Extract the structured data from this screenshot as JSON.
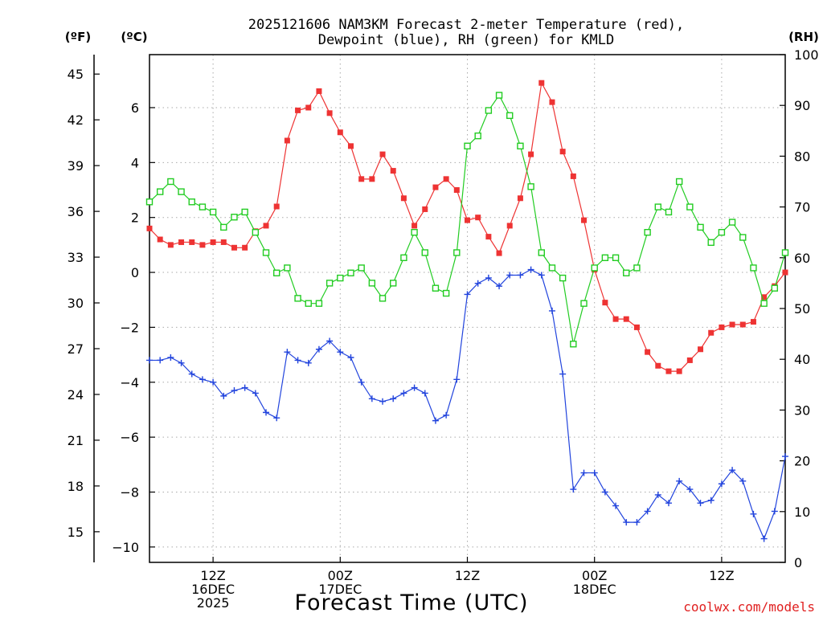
{
  "chart_data": {
    "type": "line",
    "title_line1": "2025121606 NAM3KM Forecast 2-meter Temperature (red),",
    "title_line2": "Dewpoint (blue), RH (green) for KMLD",
    "xlabel": "Forecast Time (UTC)",
    "watermark": "coolwx.com/models",
    "unit_labels": {
      "fahrenheit": "(ºF)",
      "celsius": "(ºC)",
      "rh": "(RH)"
    },
    "x_range_hours": [
      0,
      60
    ],
    "celsius_range": [
      -10.56,
      7.93
    ],
    "rh_range": [
      0,
      100
    ],
    "x_ticks": [
      {
        "hour": 6,
        "lines": [
          "12Z",
          "16DEC",
          "2025"
        ]
      },
      {
        "hour": 18,
        "lines": [
          "00Z",
          "17DEC"
        ]
      },
      {
        "hour": 30,
        "lines": [
          "12Z"
        ]
      },
      {
        "hour": 42,
        "lines": [
          "00Z",
          "18DEC"
        ]
      },
      {
        "hour": 54,
        "lines": [
          "12Z"
        ]
      }
    ],
    "celsius_ticks": [
      "−10",
      "−8",
      "−6",
      "−4",
      "−2",
      "0",
      "2",
      "4",
      "6"
    ],
    "fahrenheit_ticks": [
      "15",
      "18",
      "21",
      "24",
      "27",
      "30",
      "33",
      "36",
      "39",
      "42",
      "45"
    ],
    "rh_ticks": [
      "0",
      "10",
      "20",
      "30",
      "40",
      "50",
      "60",
      "70",
      "80",
      "90",
      "100"
    ],
    "series": [
      {
        "name": "Temperature",
        "unit": "C",
        "color": "#ee3333",
        "marker": "filled-square",
        "values": [
          1.6,
          1.2,
          1.0,
          1.1,
          1.1,
          1.0,
          1.1,
          1.1,
          0.9,
          0.9,
          1.5,
          1.7,
          2.4,
          4.8,
          5.9,
          6.0,
          6.6,
          5.8,
          5.1,
          4.6,
          3.4,
          3.4,
          4.3,
          3.7,
          2.7,
          1.7,
          2.3,
          3.1,
          3.4,
          3.0,
          1.9,
          2.0,
          1.3,
          0.7,
          1.7,
          2.7,
          4.3,
          6.9,
          6.2,
          4.4,
          3.5,
          1.9,
          0.1,
          -1.1,
          -1.7,
          -1.7,
          -2.0,
          -2.9,
          -3.4,
          -3.6,
          -3.6,
          -3.2,
          -2.8,
          -2.2,
          -2.0,
          -1.9,
          -1.9,
          -1.8,
          -0.9,
          -0.5,
          0.0
        ]
      },
      {
        "name": "Dewpoint",
        "unit": "C",
        "color": "#2244dd",
        "marker": "plus",
        "values": [
          -3.2,
          -3.2,
          -3.1,
          -3.3,
          -3.7,
          -3.9,
          -4.0,
          -4.5,
          -4.3,
          -4.2,
          -4.4,
          -5.1,
          -5.3,
          -2.9,
          -3.2,
          -3.3,
          -2.8,
          -2.5,
          -2.9,
          -3.1,
          -4.0,
          -4.6,
          -4.7,
          -4.6,
          -4.4,
          -4.2,
          -4.4,
          -5.4,
          -5.2,
          -3.9,
          -0.8,
          -0.4,
          -0.2,
          -0.5,
          -0.1,
          -0.1,
          0.1,
          -0.1,
          -1.4,
          -3.7,
          -7.9,
          -7.3,
          -7.3,
          -8.0,
          -8.5,
          -9.1,
          -9.1,
          -8.7,
          -8.1,
          -8.4,
          -7.6,
          -7.9,
          -8.4,
          -8.3,
          -7.7,
          -7.2,
          -7.6,
          -8.8,
          -9.7,
          -8.7,
          -6.7
        ]
      },
      {
        "name": "RH",
        "unit": "%",
        "color": "#22cc22",
        "marker": "open-square",
        "values": [
          71,
          73,
          75,
          73,
          71,
          70,
          69,
          66,
          68,
          69,
          65,
          61,
          57,
          58,
          52,
          51,
          51,
          55,
          56,
          57,
          58,
          55,
          52,
          55,
          60,
          65,
          61,
          54,
          53,
          61,
          82,
          84,
          89,
          92,
          88,
          82,
          74,
          61,
          58,
          56,
          43,
          51,
          58,
          60,
          60,
          57,
          58,
          65,
          70,
          69,
          75,
          70,
          66,
          63,
          65,
          67,
          64,
          58,
          51,
          54,
          61
        ]
      }
    ]
  }
}
